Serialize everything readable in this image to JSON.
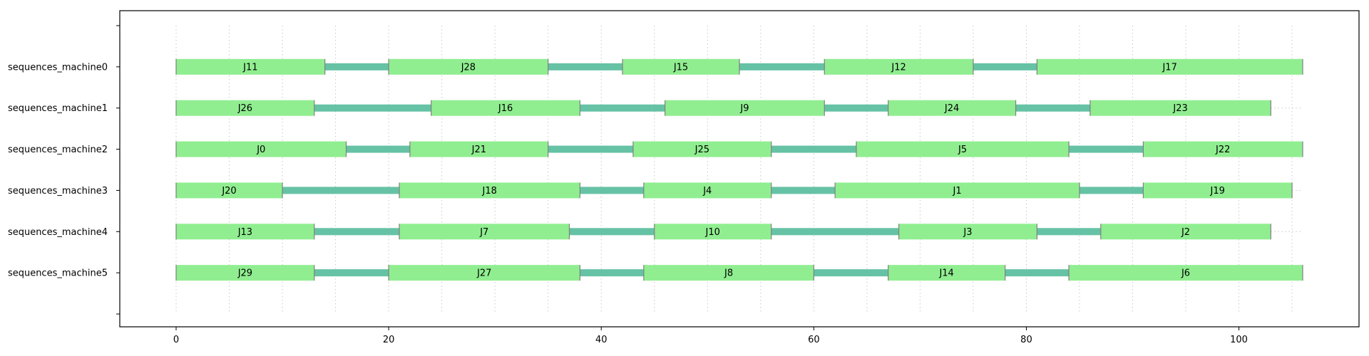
{
  "chart_data": {
    "type": "gantt",
    "title": "",
    "xlabel": "",
    "ylabel": "",
    "xlim": [
      -5.3,
      111.3
    ],
    "x_ticks": [
      0,
      20,
      40,
      60,
      80,
      100
    ],
    "grid_x_step": 5,
    "grid_x_max": 105,
    "grid_style": "dotted vertical",
    "colors": {
      "interval_fill": "#90ee90",
      "interval_edge": "#808080",
      "transition": "#66c2a5",
      "dotted_extension": "#c8c8c8"
    },
    "rows": [
      {
        "label": "sequences_machine0",
        "intervals": [
          {
            "name": "J11",
            "start": 0,
            "end": 14
          },
          {
            "name": "J28",
            "start": 20,
            "end": 35
          },
          {
            "name": "J15",
            "start": 42,
            "end": 53
          },
          {
            "name": "J12",
            "start": 61,
            "end": 75
          },
          {
            "name": "J17",
            "start": 81,
            "end": 106
          }
        ],
        "transitions": [
          [
            14,
            20
          ],
          [
            35,
            42
          ],
          [
            53,
            61
          ],
          [
            75,
            81
          ]
        ]
      },
      {
        "label": "sequences_machine1",
        "intervals": [
          {
            "name": "J26",
            "start": 0,
            "end": 13
          },
          {
            "name": "J16",
            "start": 24,
            "end": 38
          },
          {
            "name": "J9",
            "start": 46,
            "end": 61
          },
          {
            "name": "J24",
            "start": 67,
            "end": 79
          },
          {
            "name": "J23",
            "start": 86,
            "end": 103
          }
        ],
        "transitions": [
          [
            13,
            24
          ],
          [
            38,
            46
          ],
          [
            61,
            67
          ],
          [
            79,
            86
          ]
        ]
      },
      {
        "label": "sequences_machine2",
        "intervals": [
          {
            "name": "J0",
            "start": 0,
            "end": 16
          },
          {
            "name": "J21",
            "start": 22,
            "end": 35
          },
          {
            "name": "J25",
            "start": 43,
            "end": 56
          },
          {
            "name": "J5",
            "start": 64,
            "end": 84
          },
          {
            "name": "J22",
            "start": 91,
            "end": 106
          }
        ],
        "transitions": [
          [
            16,
            22
          ],
          [
            35,
            43
          ],
          [
            56,
            64
          ],
          [
            84,
            91
          ]
        ]
      },
      {
        "label": "sequences_machine3",
        "intervals": [
          {
            "name": "J20",
            "start": 0,
            "end": 10
          },
          {
            "name": "J18",
            "start": 21,
            "end": 38
          },
          {
            "name": "J4",
            "start": 44,
            "end": 56
          },
          {
            "name": "J1",
            "start": 62,
            "end": 85
          },
          {
            "name": "J19",
            "start": 91,
            "end": 105
          }
        ],
        "transitions": [
          [
            10,
            21
          ],
          [
            38,
            44
          ],
          [
            56,
            62
          ],
          [
            85,
            91
          ]
        ]
      },
      {
        "label": "sequences_machine4",
        "intervals": [
          {
            "name": "J13",
            "start": 0,
            "end": 13
          },
          {
            "name": "J7",
            "start": 21,
            "end": 37
          },
          {
            "name": "J10",
            "start": 45,
            "end": 56
          },
          {
            "name": "J3",
            "start": 68,
            "end": 81
          },
          {
            "name": "J2",
            "start": 87,
            "end": 103
          }
        ],
        "transitions": [
          [
            13,
            21
          ],
          [
            37,
            45
          ],
          [
            56,
            68
          ],
          [
            81,
            87
          ]
        ]
      },
      {
        "label": "sequences_machine5",
        "intervals": [
          {
            "name": "J29",
            "start": 0,
            "end": 13
          },
          {
            "name": "J27",
            "start": 20,
            "end": 38
          },
          {
            "name": "J8",
            "start": 44,
            "end": 60
          },
          {
            "name": "J14",
            "start": 67,
            "end": 78
          },
          {
            "name": "J6",
            "start": 84,
            "end": 106
          }
        ],
        "transitions": [
          [
            13,
            20
          ],
          [
            38,
            44
          ],
          [
            60,
            67
          ],
          [
            78,
            84
          ]
        ]
      }
    ]
  }
}
